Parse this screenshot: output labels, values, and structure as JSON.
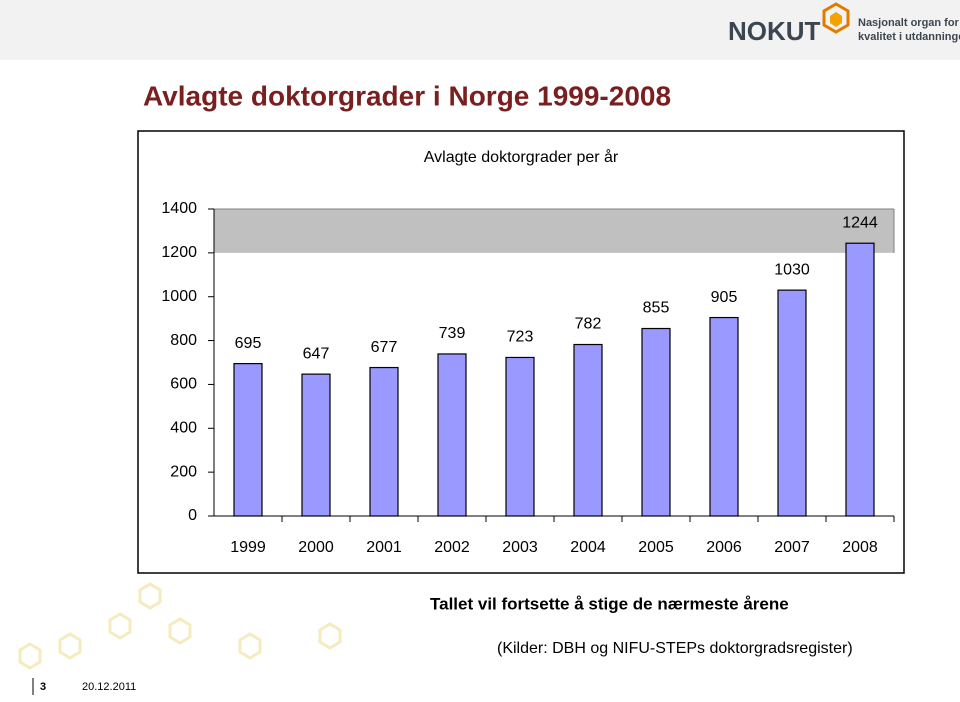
{
  "header": {
    "logo": "NOKUT",
    "tagline": [
      "Nasjonalt organ for",
      "kvalitet i utdanningen"
    ]
  },
  "slide_title": "Avlagte doktorgrader i Norge 1999-2008",
  "chart_data": {
    "type": "bar",
    "title": "Avlagte doktorgrader per år",
    "categories": [
      "1999",
      "2000",
      "2001",
      "2002",
      "2003",
      "2004",
      "2005",
      "2006",
      "2007",
      "2008"
    ],
    "values": [
      695,
      647,
      677,
      739,
      723,
      782,
      855,
      905,
      1030,
      1244
    ],
    "color": "#9999ff",
    "ylim": [
      0,
      1400
    ],
    "yticks": [
      0,
      200,
      400,
      600,
      800,
      1000,
      1200,
      1400
    ]
  },
  "notes": [
    "Tallet vil fortsette å stige de nærmeste årene",
    "(Kilder: DBH og NIFU-STEPs doktorgradsregister)"
  ],
  "footer": {
    "page": "3",
    "date": "20.12.2011"
  }
}
